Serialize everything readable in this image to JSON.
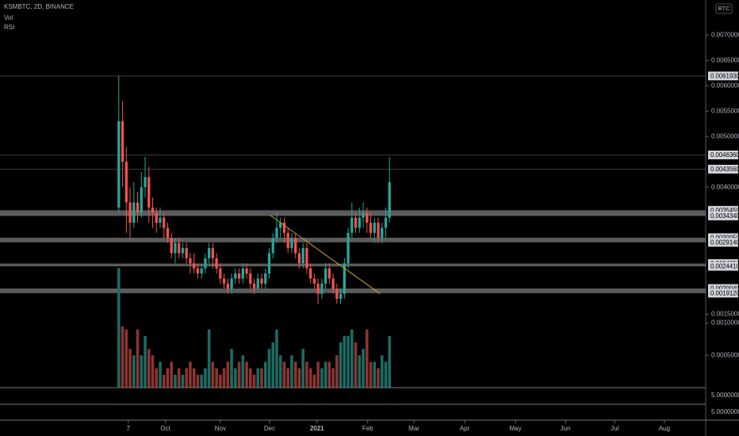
{
  "chart_data": {
    "type": "candlestick",
    "title": "KSMBTC, 2D, BINANCE",
    "indicators": [
      "Vol",
      "RSI"
    ],
    "unit": "BTC",
    "up_color": "#26a69a",
    "down_color": "#ef5350",
    "volume_up_color": "#1b6b63",
    "volume_down_color": "#8b3533",
    "xlim": [
      -31.6,
      156.1
    ],
    "xticks": [
      {
        "value": 2.5,
        "label": "7"
      },
      {
        "value": 12.4,
        "label": "Oct"
      },
      {
        "value": 27,
        "label": "Nov"
      },
      {
        "value": 40.1,
        "label": "Dec"
      },
      {
        "value": 52.7,
        "label": "2021"
      },
      {
        "value": 66.2,
        "label": "Feb"
      },
      {
        "value": 78.5,
        "label": "Mar"
      },
      {
        "value": 92,
        "label": "Apr"
      },
      {
        "value": 105.5,
        "label": "May"
      },
      {
        "value": 118.8,
        "label": "Jun"
      },
      {
        "value": 131.9,
        "label": "Jul"
      },
      {
        "value": 145.1,
        "label": "Aug"
      }
    ],
    "ylim": [
      5e-05,
      0.00769
    ],
    "yticks": [
      {
        "value": 0.007,
        "label": "0.00700000"
      },
      {
        "value": 0.0065,
        "label": "0.00650000"
      },
      {
        "value": 0.006,
        "label": "0.00600000"
      },
      {
        "value": 0.0055,
        "label": "0.00550000"
      },
      {
        "value": 0.005,
        "label": "0.00500000"
      },
      {
        "value": 0.004,
        "label": "0.00400000"
      },
      {
        "value": 0.0015,
        "label": "0.00150000"
      }
    ],
    "vol_ylim": [
      0,
      0.006
    ],
    "vol_yticks": [
      {
        "value": 0.001,
        "label": "0.00100000"
      },
      {
        "value": 0.0005,
        "label": "0.00050000"
      }
    ],
    "rsi_labels": [
      "5.00000000",
      "5.00000000"
    ],
    "levels": [
      {
        "value": 0.006193,
        "label": "0.00619300"
      },
      {
        "value": 0.004636,
        "label": "0.00463600"
      },
      {
        "value": 0.004356,
        "label": "0.00435600"
      }
    ],
    "zones": [
      {
        "top": {
          "value": 0.003545,
          "label": "0.00354500"
        },
        "bottom": {
          "value": 0.003434,
          "label": "0.00343400"
        }
      },
      {
        "top": {
          "value": 0.003005,
          "label": "0.00300500"
        },
        "bottom": {
          "value": 0.002914,
          "label": "0.00291400"
        }
      },
      {
        "top": {
          "value": 0.002495,
          "label": "0.00249500"
        },
        "bottom": {
          "value": 0.002441,
          "label": "0.00244100"
        }
      },
      {
        "top": {
          "value": 0.002004,
          "label": "0.00200400"
        },
        "bottom": {
          "value": 0.001912,
          "label": "0.00191200"
        }
      }
    ],
    "trendline": {
      "x": [
        40.2,
        69.5
      ],
      "y": [
        0.00345,
        0.0019
      ],
      "color": "#c9a227"
    },
    "open": [
      0.0036,
      0.0053,
      0.0045,
      0.0037,
      0.0033,
      0.0037,
      0.0035,
      0.004,
      0.0042,
      0.0036,
      0.0035,
      0.0033,
      0.0034,
      0.0032,
      0.003,
      0.0027,
      0.0029,
      0.0027,
      0.0028,
      0.0026,
      0.0025,
      0.0024,
      0.0023,
      0.0024,
      0.0026,
      0.0028,
      0.0026,
      0.0024,
      0.0022,
      0.0021,
      0.002,
      0.0022,
      0.0023,
      0.0022,
      0.0024,
      0.0023,
      0.0021,
      0.002,
      0.0022,
      0.0021,
      0.0023,
      0.0027,
      0.003,
      0.0032,
      0.0033,
      0.0031,
      0.0028,
      0.003,
      0.0027,
      0.0025,
      0.0028,
      0.0024,
      0.0022,
      0.0021,
      0.0019,
      0.0021,
      0.0024,
      0.0022,
      0.002,
      0.0018,
      0.0019,
      0.0025,
      0.0031,
      0.0034,
      0.0032,
      0.0034,
      0.0035,
      0.0033,
      0.0031,
      0.0033,
      0.003,
      0.0032,
      0.0034
    ],
    "close": [
      0.0053,
      0.0045,
      0.0037,
      0.0033,
      0.0037,
      0.0035,
      0.004,
      0.0042,
      0.0036,
      0.0035,
      0.0033,
      0.0034,
      0.0032,
      0.003,
      0.0027,
      0.0029,
      0.0027,
      0.0028,
      0.0026,
      0.0025,
      0.0024,
      0.0023,
      0.0024,
      0.0026,
      0.0028,
      0.0026,
      0.0024,
      0.0022,
      0.0021,
      0.002,
      0.0022,
      0.0023,
      0.0022,
      0.0024,
      0.0023,
      0.0021,
      0.002,
      0.0022,
      0.0021,
      0.0023,
      0.0027,
      0.003,
      0.0032,
      0.0033,
      0.0031,
      0.0028,
      0.003,
      0.0027,
      0.0025,
      0.0028,
      0.0024,
      0.0022,
      0.0021,
      0.0019,
      0.0021,
      0.0024,
      0.0022,
      0.002,
      0.0018,
      0.0019,
      0.0025,
      0.0031,
      0.0034,
      0.0032,
      0.0034,
      0.0035,
      0.0033,
      0.0031,
      0.0033,
      0.003,
      0.0032,
      0.0034,
      0.0041
    ],
    "high": [
      0.0062,
      0.0057,
      0.0048,
      0.004,
      0.0041,
      0.0039,
      0.0043,
      0.0046,
      0.0044,
      0.0038,
      0.0036,
      0.0036,
      0.0035,
      0.0033,
      0.0031,
      0.003,
      0.003,
      0.0029,
      0.0029,
      0.0027,
      0.0027,
      0.0025,
      0.0025,
      0.0027,
      0.0029,
      0.0029,
      0.0027,
      0.0025,
      0.0023,
      0.0022,
      0.0023,
      0.0024,
      0.0024,
      0.0025,
      0.0025,
      0.0024,
      0.0022,
      0.0023,
      0.0023,
      0.0024,
      0.0028,
      0.0031,
      0.0035,
      0.0034,
      0.0034,
      0.0032,
      0.0031,
      0.0031,
      0.0028,
      0.0029,
      0.0029,
      0.0025,
      0.0023,
      0.0022,
      0.0022,
      0.0025,
      0.0025,
      0.0023,
      0.0021,
      0.002,
      0.0026,
      0.0032,
      0.0037,
      0.0035,
      0.0036,
      0.0037,
      0.0036,
      0.0035,
      0.0034,
      0.0034,
      0.0033,
      0.0036,
      0.0046
    ],
    "low": [
      0.0035,
      0.004,
      0.0031,
      0.003,
      0.0032,
      0.0033,
      0.0034,
      0.0038,
      0.0033,
      0.0032,
      0.0031,
      0.0032,
      0.003,
      0.0029,
      0.0026,
      0.0025,
      0.0026,
      0.0026,
      0.0025,
      0.0023,
      0.0023,
      0.0022,
      0.0022,
      0.0023,
      0.0025,
      0.0024,
      0.0023,
      0.0021,
      0.002,
      0.0019,
      0.0019,
      0.0021,
      0.0021,
      0.0021,
      0.0022,
      0.002,
      0.0019,
      0.002,
      0.002,
      0.002,
      0.0022,
      0.0026,
      0.0029,
      0.003,
      0.0029,
      0.0027,
      0.0027,
      0.0026,
      0.0024,
      0.0024,
      0.0023,
      0.0021,
      0.002,
      0.0017,
      0.0018,
      0.002,
      0.0021,
      0.0019,
      0.0017,
      0.0017,
      0.0018,
      0.0024,
      0.003,
      0.0031,
      0.0031,
      0.0032,
      0.0031,
      0.003,
      0.0029,
      0.0029,
      0.0029,
      0.003,
      0.0033
    ],
    "volume": [
      0.00185,
      0.00095,
      0.0009,
      0.0006,
      0.0005,
      0.0009,
      0.0005,
      0.0008,
      0.0006,
      0.0005,
      0.0003,
      0.0004,
      0.0002,
      0.0003,
      0.0004,
      0.0002,
      0.0003,
      0.0002,
      0.0003,
      0.0004,
      0.0003,
      0.0002,
      0.0002,
      0.0003,
      0.0009,
      0.0004,
      0.0003,
      0.0002,
      0.0003,
      0.0004,
      0.0006,
      0.0003,
      0.0004,
      0.0005,
      0.0004,
      0.0003,
      0.0002,
      0.0003,
      0.0003,
      0.0004,
      0.0006,
      0.0007,
      0.0009,
      0.0005,
      0.0004,
      0.0003,
      0.0005,
      0.0004,
      0.0003,
      0.0006,
      0.0004,
      0.0003,
      0.0002,
      0.0004,
      0.0003,
      0.0004,
      0.0004,
      0.0003,
      0.0005,
      0.0007,
      0.0008,
      0.0008,
      0.0009,
      0.0007,
      0.0005,
      0.0006,
      0.0009,
      0.0004,
      0.0004,
      0.0003,
      0.0005,
      0.0004,
      0.0008
    ]
  }
}
